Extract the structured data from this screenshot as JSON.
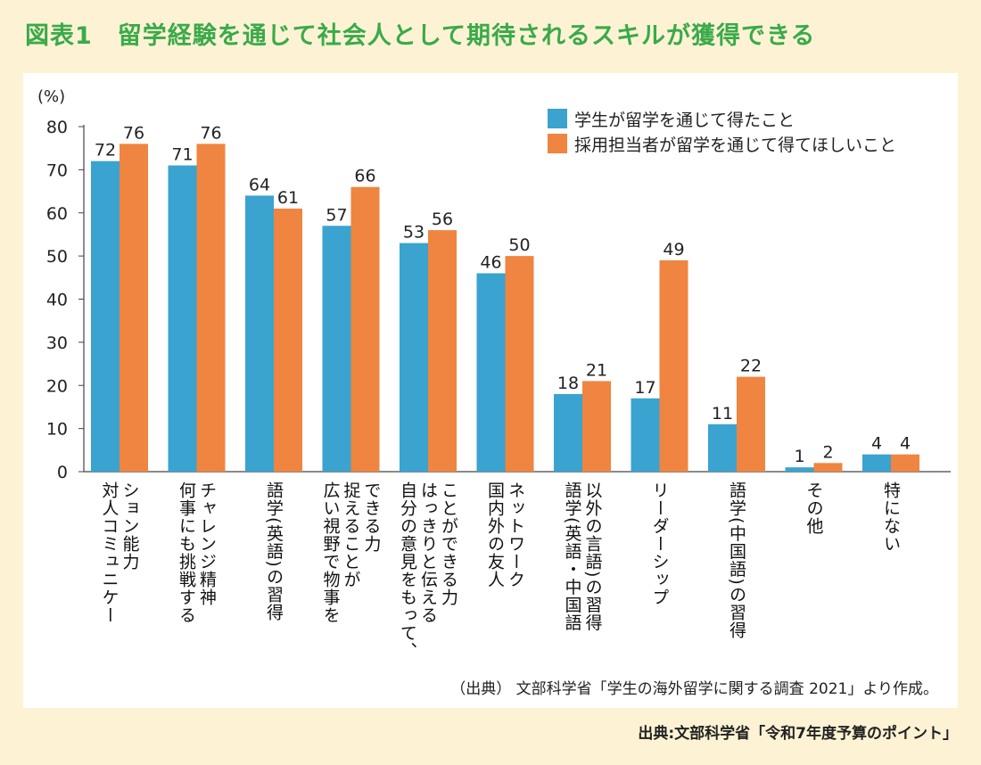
{
  "title": "図表1　留学経験を通じて社会人として期待されるスキルが獲得できる",
  "source_note": "（出典） 文部科学省「学生の海外留学に関する調査 2021」より作成。",
  "footer": "出典:文部科学省「令和7年度予算のポイント」",
  "chart_data": {
    "type": "bar",
    "title": "留学経験を通じて社会人として期待されるスキルが獲得できる",
    "ylabel": "(%)",
    "xlabel": "",
    "ylim": [
      0,
      80
    ],
    "yticks": [
      "0",
      "10",
      "20",
      "30",
      "40",
      "50",
      "60",
      "70",
      "80"
    ],
    "categories": [
      [
        "対人コミュニケー",
        "ション能力"
      ],
      [
        "何事にも挑戦する",
        "チャレンジ精神"
      ],
      [
        "語学(英語)の習得"
      ],
      [
        "広い視野で物事を",
        "捉えることが",
        "できる力"
      ],
      [
        "自分の意見をもって、",
        "はっきりと伝える",
        "ことができる力"
      ],
      [
        "国内外の友人",
        "ネットワーク"
      ],
      [
        "語学(英語・中国語",
        "以外の言語)の習得"
      ],
      [
        "リーダーシップ"
      ],
      [
        "語学(中国語)の習得"
      ],
      [
        "その他"
      ],
      [
        "特にない"
      ]
    ],
    "series": [
      {
        "name": "学生が留学を通じて得たこと",
        "color": "#3aa3cf",
        "values": [
          72,
          71,
          64,
          57,
          53,
          46,
          18,
          17,
          11,
          1,
          4
        ]
      },
      {
        "name": "採用担当者が留学を通じて得てほしいこと",
        "color": "#ef8540",
        "values": [
          76,
          76,
          61,
          66,
          56,
          50,
          21,
          49,
          22,
          2,
          4
        ]
      }
    ],
    "legend_position": "top-right",
    "grid": false
  }
}
